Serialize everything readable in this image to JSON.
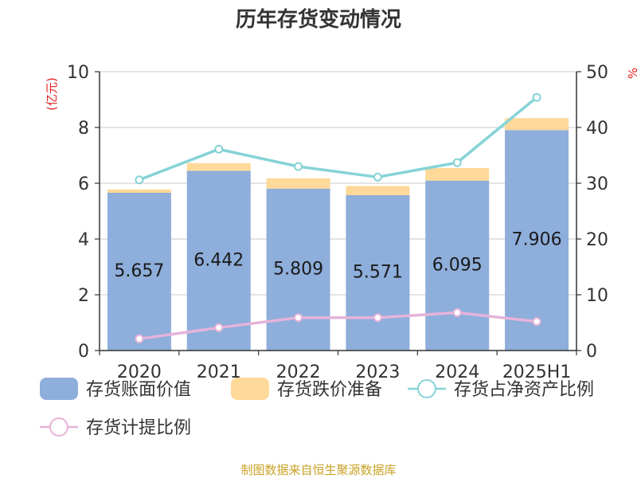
{
  "title": "历年存货变动情况",
  "source": "制图数据来自恒生聚源数据库",
  "chart_data": {
    "type": "bar",
    "categories": [
      "2020",
      "2021",
      "2022",
      "2023",
      "2024",
      "2025H1"
    ],
    "y_left": {
      "unit_label": "(亿元)",
      "ylim": [
        0,
        10
      ],
      "ticks": [
        "0",
        "2",
        "4",
        "6",
        "8",
        "10"
      ]
    },
    "y_right": {
      "unit_label": "%",
      "ylim": [
        0,
        50
      ],
      "ticks": [
        "0",
        "10",
        "20",
        "30",
        "40",
        "50"
      ]
    },
    "grid": true,
    "legend_position": "bottom",
    "series": [
      {
        "name": "存货账面价值",
        "kind": "bar",
        "axis": "left",
        "stack": "inv",
        "color": "#8eaedb",
        "values": [
          5.657,
          6.442,
          5.809,
          5.571,
          6.095,
          7.906
        ],
        "labels": [
          "5.657",
          "6.442",
          "5.809",
          "5.571",
          "6.095",
          "7.906"
        ]
      },
      {
        "name": "存货跌价准备",
        "kind": "bar",
        "axis": "left",
        "stack": "inv",
        "color": "#ffd99a",
        "values": [
          0.12,
          0.28,
          0.37,
          0.33,
          0.45,
          0.43
        ]
      },
      {
        "name": "存货占净资产比例",
        "kind": "line",
        "axis": "right",
        "color": "#86d3d6",
        "values": [
          30.6,
          36.1,
          33.0,
          31.1,
          33.7,
          45.4
        ]
      },
      {
        "name": "存货计提比例",
        "kind": "line",
        "axis": "right",
        "color": "#e6b3d9",
        "values": [
          2.1,
          4.1,
          5.9,
          5.9,
          6.8,
          5.2
        ]
      }
    ]
  }
}
